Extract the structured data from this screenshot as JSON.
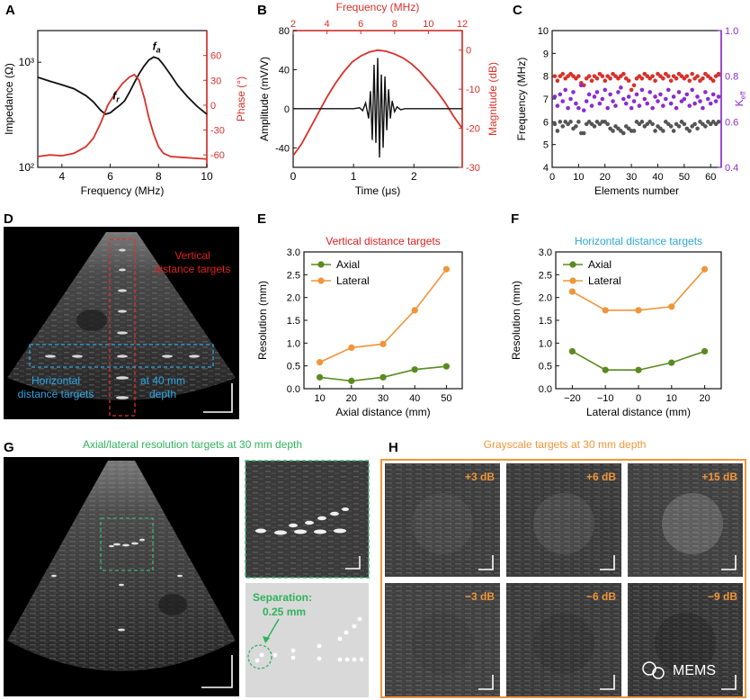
{
  "colors": {
    "black": "#111111",
    "red": "#d9302a",
    "purple": "#8b2ccf",
    "gray_dots": "#555555",
    "green": "#5a8a1f",
    "orange": "#f0953a",
    "vertical_title": "#e02020",
    "horizontal_title": "#2aa7d6",
    "g_title": "#2fb35a",
    "h_title": "#f0953a",
    "cyan_box": "#2fa6e6",
    "red_box": "#e03030",
    "green_box": "#3cb371"
  },
  "panels": {
    "a": "A",
    "b": "B",
    "c": "C",
    "d": "D",
    "e": "E",
    "f": "F",
    "g": "G",
    "h": "H"
  },
  "chart_data": [
    {
      "id": "A",
      "type": "line",
      "xlabel": "Frequency (MHz)",
      "ylabel_left": "Impedance (Ω)",
      "ylabel_right": "Phase (°)",
      "xlim": [
        3,
        10
      ],
      "x_ticks": [
        "4",
        "6",
        "8",
        "10"
      ],
      "y_left_scale": "log",
      "y_left_lim": [
        100,
        2000
      ],
      "y_left_ticks": [
        "10²",
        "10³"
      ],
      "y_right_lim": [
        -75,
        90
      ],
      "y_right_ticks": [
        "-60",
        "-30",
        "0",
        "30",
        "60"
      ],
      "annotations": [
        "fr",
        "fa"
      ],
      "series": [
        {
          "axis": "left",
          "x": [
            3.0,
            3.5,
            4.0,
            4.5,
            5.0,
            5.3,
            5.6,
            5.8,
            6.0,
            6.2,
            6.4,
            6.6,
            6.8,
            7.0,
            7.2,
            7.4,
            7.6,
            7.8,
            8.0,
            8.2,
            8.5,
            8.8,
            9.2,
            9.6,
            10.0
          ],
          "y": [
            720,
            660,
            610,
            560,
            480,
            420,
            350,
            320,
            330,
            360,
            390,
            430,
            520,
            640,
            780,
            920,
            1050,
            1120,
            1080,
            950,
            760,
            600,
            470,
            380,
            320
          ]
        },
        {
          "axis": "right",
          "x": [
            3.0,
            3.5,
            4.0,
            4.5,
            5.0,
            5.3,
            5.6,
            5.9,
            6.2,
            6.5,
            6.8,
            7.0,
            7.2,
            7.4,
            7.6,
            7.8,
            8.0,
            8.2,
            8.5,
            9.0,
            9.5,
            10.0
          ],
          "y": [
            -62,
            -60,
            -61,
            -58,
            -50,
            -40,
            -22,
            0,
            14,
            26,
            34,
            37,
            30,
            10,
            -15,
            -35,
            -50,
            -58,
            -62,
            -63,
            -64,
            -65
          ]
        }
      ]
    },
    {
      "id": "B",
      "type": "line",
      "xlabel": "Time (μs)",
      "ylabel_left": "Amplitude (mV/V)",
      "x2label": "Frequency (MHz)",
      "ylabel_right": "Magnitude (dB)",
      "xlim": [
        0,
        2.8
      ],
      "x_ticks": [
        "0",
        "1",
        "2"
      ],
      "y_left_lim": [
        -60,
        80
      ],
      "y_left_ticks": [
        "-40",
        "0",
        "40",
        "80"
      ],
      "x2lim": [
        2,
        12
      ],
      "x2_ticks": [
        "2",
        "4",
        "6",
        "8",
        "10",
        "12"
      ],
      "y_right_lim": [
        -30,
        5
      ],
      "y_right_ticks": [
        "-30",
        "-20",
        "-10",
        "0"
      ],
      "series": [
        {
          "axis": "left",
          "x": [
            0,
            0.2,
            0.5,
            0.8,
            1.0,
            1.1,
            1.15,
            1.2,
            1.25,
            1.28,
            1.31,
            1.34,
            1.37,
            1.4,
            1.43,
            1.46,
            1.49,
            1.52,
            1.55,
            1.58,
            1.61,
            1.64,
            1.68,
            1.72,
            1.78,
            1.85,
            2.0,
            2.4,
            2.8
          ],
          "y": [
            0,
            0,
            0,
            0,
            0,
            1,
            -2,
            6,
            -10,
            18,
            -32,
            45,
            -35,
            52,
            -50,
            35,
            -40,
            33,
            -22,
            20,
            -10,
            8,
            -3,
            2,
            -1,
            0,
            0,
            0,
            0
          ]
        },
        {
          "axis": "right",
          "on": "x2",
          "x": [
            2.0,
            2.5,
            3,
            3.5,
            4,
            4.5,
            5,
            5.5,
            6,
            6.5,
            7,
            7.5,
            8,
            8.5,
            9,
            9.5,
            10,
            10.5,
            11,
            11.5,
            12
          ],
          "y": [
            -27,
            -24,
            -20,
            -16,
            -12,
            -8.5,
            -5.5,
            -3,
            -1.5,
            -0.5,
            0,
            -0.3,
            -1,
            -2,
            -3.5,
            -5.5,
            -8,
            -10.5,
            -13.5,
            -17,
            -20
          ]
        }
      ]
    },
    {
      "id": "C",
      "type": "scatter",
      "xlabel": "Elements number",
      "ylabel_left": "Frequency (MHz)",
      "ylabel_right": "Keff",
      "xlim": [
        0,
        64
      ],
      "x_ticks": [
        "0",
        "10",
        "20",
        "30",
        "40",
        "50",
        "60"
      ],
      "y_left_lim": [
        4,
        10
      ],
      "y_left_ticks": [
        "4",
        "5",
        "6",
        "7",
        "8",
        "9",
        "10"
      ],
      "y_right_lim": [
        0.4,
        1.0
      ],
      "y_right_ticks": [
        "0.4",
        "0.6",
        "0.8",
        "1.0"
      ],
      "series": [
        {
          "axis": "left",
          "color_key": "red",
          "x_start": 1,
          "x_step": 1,
          "y": [
            8.0,
            7.8,
            8.0,
            8.1,
            7.9,
            8.0,
            8.1,
            8.0,
            7.9,
            8.0,
            7.7,
            7.6,
            7.9,
            8.0,
            7.8,
            8.0,
            7.9,
            8.1,
            8.0,
            7.8,
            8.0,
            7.9,
            8.1,
            8.0,
            7.9,
            8.0,
            8.1,
            7.9,
            7.8,
            7.4,
            7.6,
            7.9,
            8.0,
            7.9,
            8.1,
            8.0,
            7.9,
            8.0,
            7.8,
            8.1,
            8.0,
            7.9,
            8.1,
            8.0,
            7.8,
            8.0,
            7.9,
            8.1,
            8.0,
            7.9,
            8.0,
            7.8,
            8.1,
            7.9,
            8.0,
            7.8,
            7.9,
            8.1,
            8.0,
            7.9,
            7.8,
            8.0,
            8.1
          ]
        },
        {
          "axis": "right",
          "color_key": "purple",
          "x_start": 1,
          "x_step": 1,
          "y": [
            0.71,
            0.67,
            0.72,
            0.69,
            0.74,
            0.66,
            0.7,
            0.73,
            0.68,
            0.66,
            0.76,
            0.65,
            0.69,
            0.72,
            0.67,
            0.71,
            0.73,
            0.68,
            0.7,
            0.74,
            0.66,
            0.72,
            0.69,
            0.67,
            0.73,
            0.75,
            0.7,
            0.68,
            0.71,
            0.66,
            0.69,
            0.72,
            0.67,
            0.74,
            0.7,
            0.68,
            0.73,
            0.66,
            0.71,
            0.69,
            0.72,
            0.67,
            0.7,
            0.74,
            0.68,
            0.71,
            0.66,
            0.73,
            0.69,
            0.7,
            0.72,
            0.67,
            0.74,
            0.68,
            0.71,
            0.69,
            0.66,
            0.73,
            0.7,
            0.68,
            0.72,
            0.69,
            0.71
          ]
        },
        {
          "axis": "left",
          "color_key": "gray_dots",
          "x_start": 1,
          "x_step": 1,
          "y": [
            5.9,
            5.6,
            6.0,
            5.8,
            6.0,
            5.9,
            6.0,
            5.7,
            5.8,
            6.0,
            5.5,
            5.5,
            5.9,
            6.0,
            5.9,
            5.8,
            6.0,
            5.9,
            6.0,
            6.0,
            5.9,
            5.7,
            5.6,
            5.8,
            5.7,
            5.6,
            5.5,
            5.8,
            5.7,
            5.6,
            5.6,
            6.0,
            5.9,
            6.0,
            5.8,
            5.9,
            6.0,
            5.9,
            5.6,
            5.8,
            5.7,
            5.6,
            6.0,
            5.9,
            5.8,
            5.6,
            5.9,
            5.8,
            6.0,
            5.9,
            5.7,
            5.6,
            5.8,
            5.9,
            5.7,
            6.0,
            5.9,
            5.8,
            6.0,
            5.9,
            6.0,
            5.9,
            6.0
          ]
        }
      ]
    },
    {
      "id": "E",
      "type": "line",
      "title": "Vertical distance targets",
      "xlabel": "Axial distance (mm)",
      "ylabel": "Resolution (mm)",
      "xlim": [
        5,
        55
      ],
      "ylim": [
        0,
        3.0
      ],
      "x_ticks": [
        "10",
        "20",
        "30",
        "40",
        "50"
      ],
      "y_ticks": [
        "0.0",
        "0.5",
        "1.0",
        "1.5",
        "2.0",
        "2.5",
        "3.0"
      ],
      "x": [
        10,
        20,
        30,
        40,
        50
      ],
      "series": [
        {
          "name": "Axial",
          "color_key": "green",
          "values": [
            0.25,
            0.17,
            0.25,
            0.42,
            0.49
          ]
        },
        {
          "name": "Lateral",
          "color_key": "orange",
          "values": [
            0.58,
            0.9,
            0.98,
            1.72,
            2.62
          ]
        }
      ],
      "legend": "top-left"
    },
    {
      "id": "F",
      "type": "line",
      "title": "Horizontal distance targets",
      "xlabel": "Lateral distance (mm)",
      "ylabel": "Resolution (mm)",
      "xlim": [
        -25,
        25
      ],
      "ylim": [
        0,
        3.0
      ],
      "x_ticks": [
        "−20",
        "−10",
        "0",
        "10",
        "20"
      ],
      "y_ticks": [
        "0.0",
        "0.5",
        "1.0",
        "1.5",
        "2.0",
        "2.5",
        "3.0"
      ],
      "x": [
        -20,
        -10,
        0,
        10,
        20
      ],
      "series": [
        {
          "name": "Axial",
          "color_key": "green",
          "values": [
            0.82,
            0.41,
            0.41,
            0.57,
            0.82
          ]
        },
        {
          "name": "Lateral",
          "color_key": "orange",
          "values": [
            2.13,
            1.72,
            1.72,
            1.8,
            2.62
          ]
        }
      ],
      "legend": "top-left"
    }
  ],
  "panel_d": {
    "vertical_label_1": "Vertical",
    "vertical_label_2": "distance targets",
    "horizontal_label_1": "Horizontal",
    "horizontal_label_2": "distance targets",
    "depth_label_1": "at 40 mm",
    "depth_label_2": "depth"
  },
  "panel_g": {
    "title": "Axial/lateral resolution targets at 30 mm depth",
    "separation_label_1": "Separation:",
    "separation_label_2": "0.25 mm"
  },
  "panel_h": {
    "title": "Grayscale targets at 30 mm depth",
    "cells": [
      "+3 dB",
      "+6 dB",
      "+15 dB",
      "−3 dB",
      "−6 dB",
      "−9 dB"
    ]
  },
  "watermark": "MEMS"
}
